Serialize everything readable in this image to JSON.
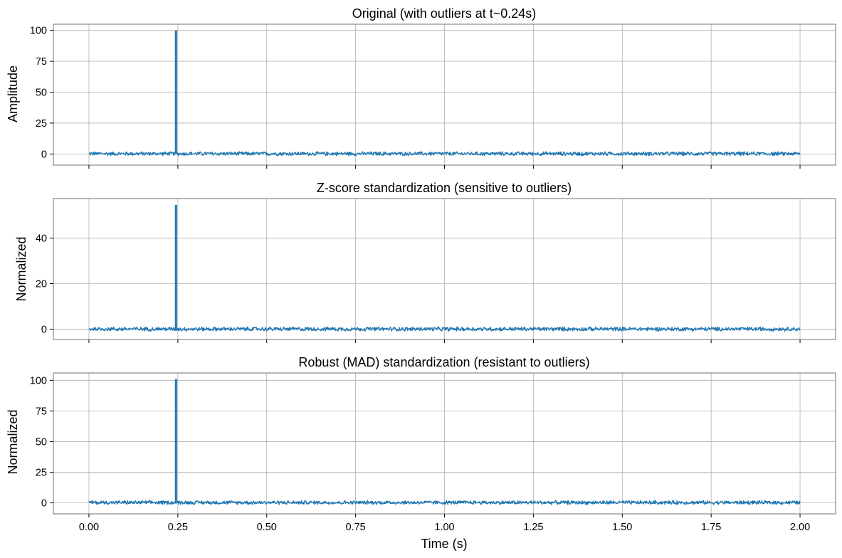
{
  "chart_data": [
    {
      "type": "line",
      "title": "Original (with outliers at t~0.24s)",
      "xlabel": "",
      "ylabel": "Amplitude",
      "xlim": [
        -0.1,
        2.1
      ],
      "ylim": [
        -9,
        105
      ],
      "xticks": [
        0.0,
        0.25,
        0.5,
        0.75,
        1.0,
        1.25,
        1.5,
        1.75,
        2.0
      ],
      "xtick_labels_shown": false,
      "yticks": [
        0,
        25,
        50,
        75,
        100
      ],
      "ytick_labels": [
        "0",
        "25",
        "50",
        "75",
        "100"
      ],
      "grid": true,
      "series_color": "#1f77b4",
      "noise_band": [
        -1.5,
        2.0
      ],
      "spike": {
        "x": 0.245,
        "y": 100
      }
    },
    {
      "type": "line",
      "title": "Z-score standardization (sensitive to outliers)",
      "xlabel": "",
      "ylabel": "Normalized",
      "xlim": [
        -0.1,
        2.1
      ],
      "ylim": [
        -4.5,
        57.3
      ],
      "xticks": [
        0.0,
        0.25,
        0.5,
        0.75,
        1.0,
        1.25,
        1.5,
        1.75,
        2.0
      ],
      "xtick_labels_shown": false,
      "yticks": [
        0,
        20,
        40
      ],
      "ytick_labels": [
        "0",
        "20",
        "40"
      ],
      "grid": true,
      "series_color": "#1f77b4",
      "noise_band": [
        -0.9,
        1.1
      ],
      "spike": {
        "x": 0.245,
        "y": 54.5
      }
    },
    {
      "type": "line",
      "title": "Robust (MAD) standardization (resistant to outliers)",
      "xlabel": "Time (s)",
      "ylabel": "Normalized",
      "xlim": [
        -0.1,
        2.1
      ],
      "ylim": [
        -9,
        106
      ],
      "xticks": [
        0.0,
        0.25,
        0.5,
        0.75,
        1.0,
        1.25,
        1.5,
        1.75,
        2.0
      ],
      "xtick_labels_shown": true,
      "xtick_labels": [
        "0.00",
        "0.25",
        "0.50",
        "0.75",
        "1.00",
        "1.25",
        "1.50",
        "1.75",
        "2.00"
      ],
      "yticks": [
        0,
        25,
        50,
        75,
        100
      ],
      "ytick_labels": [
        "0",
        "25",
        "50",
        "75",
        "100"
      ],
      "grid": true,
      "series_color": "#1f77b4",
      "noise_band": [
        -1.5,
        2.0
      ],
      "spike": {
        "x": 0.245,
        "y": 101
      }
    }
  ]
}
